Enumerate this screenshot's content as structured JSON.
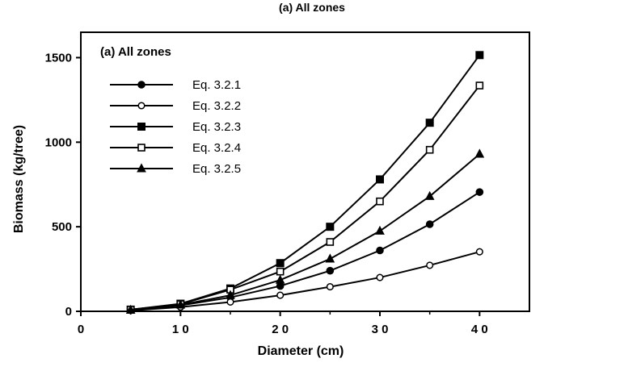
{
  "page_title": "(a) All zones",
  "chart_data": {
    "type": "line",
    "title": "(a)  All  zones",
    "xlabel": "Diameter    (cm)",
    "ylabel": "Biomass    (kg/tree)",
    "xlim": [
      0,
      45
    ],
    "ylim": [
      0,
      1650
    ],
    "xticks": [
      0,
      10,
      20,
      30,
      40
    ],
    "xtick_labels": [
      "0",
      "1 0",
      "2 0",
      "3 0",
      "4 0"
    ],
    "yticks": [
      0,
      500,
      1000,
      1500
    ],
    "ytick_labels": [
      "0",
      "500",
      "1000",
      "1500"
    ],
    "grid": false,
    "legend_position": "upper-left",
    "x": [
      5,
      10,
      15,
      20,
      25,
      30,
      35,
      40
    ],
    "series": [
      {
        "name": "Eq. 3.2.1",
        "marker": "circle-filled",
        "values": [
          8,
          35,
          82,
          150,
          240,
          360,
          515,
          705
        ]
      },
      {
        "name": "Eq. 3.2.2",
        "marker": "circle-open",
        "values": [
          5,
          25,
          55,
          95,
          145,
          200,
          272,
          352
        ]
      },
      {
        "name": "Eq. 3.2.3",
        "marker": "square-filled",
        "values": [
          10,
          45,
          135,
          285,
          500,
          780,
          1115,
          1515
        ]
      },
      {
        "name": "Eq. 3.2.4",
        "marker": "square-open",
        "values": [
          10,
          42,
          128,
          235,
          410,
          650,
          955,
          1335
        ]
      },
      {
        "name": "Eq. 3.2.5",
        "marker": "triangle-filled",
        "values": [
          8,
          38,
          95,
          185,
          310,
          475,
          680,
          930
        ]
      }
    ]
  }
}
